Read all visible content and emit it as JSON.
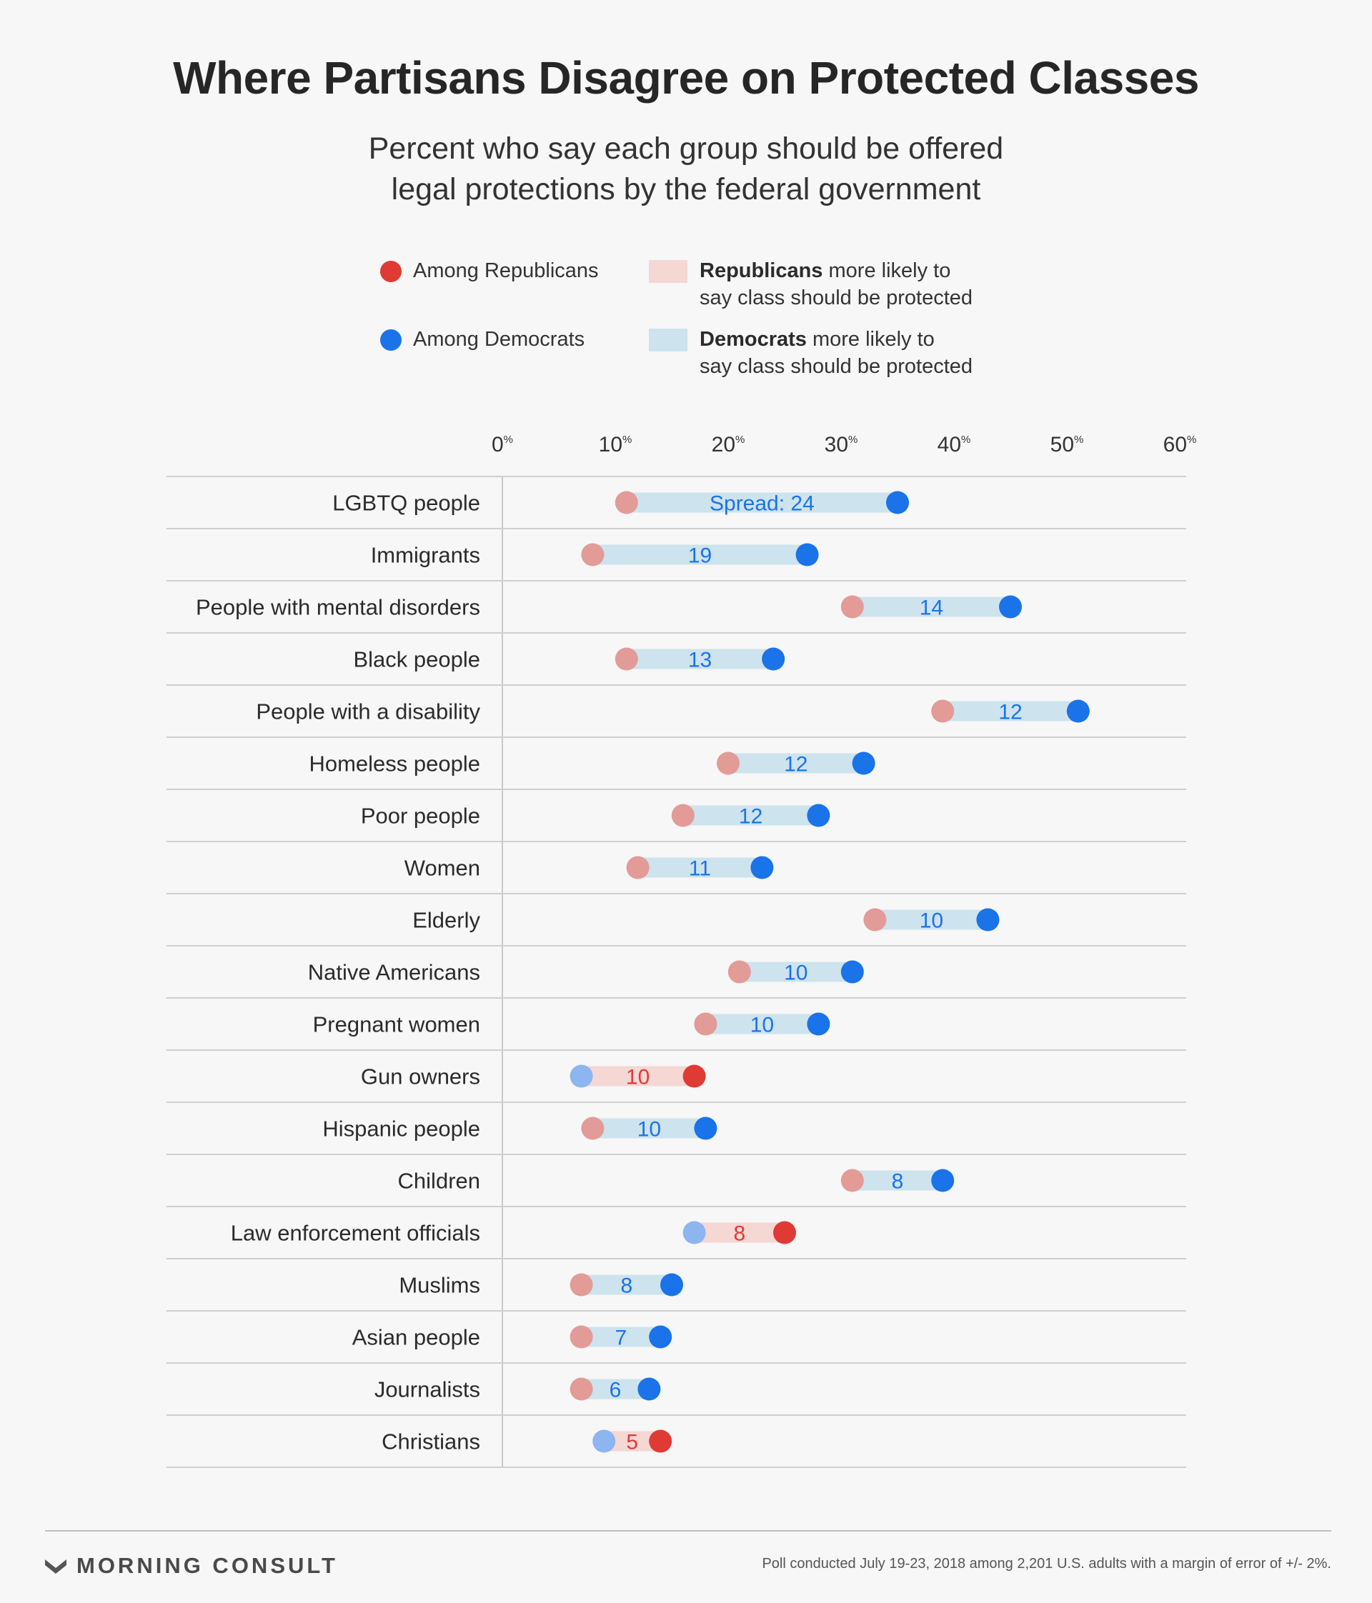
{
  "title": "Where Partisans Disagree on Protected Classes",
  "subtitle_line1": "Percent who say each group should be offered",
  "subtitle_line2": "legal protections by the federal government",
  "legend": {
    "rep_dot": "Among Republicans",
    "dem_dot": "Among Democrats",
    "rep_bar_bold": "Republicans",
    "rep_bar_rest1": " more likely to",
    "rep_bar_rest2": "say class should be protected",
    "dem_bar_bold": "Democrats",
    "dem_bar_rest1": " more likely to",
    "dem_bar_rest2": "say class should be protected"
  },
  "colors": {
    "rep": "#df3b34",
    "rep_light": "#e29b96",
    "dem": "#1a73e8",
    "dem_light": "#8db5ef",
    "dem_bar": "#cde3ee",
    "rep_bar": "#f5d7d4",
    "dem_text": "#1a73e8",
    "rep_text": "#df3b34"
  },
  "chart_data": {
    "type": "dumbbell",
    "x_ticks": [
      0,
      10,
      20,
      30,
      40,
      50,
      60
    ],
    "tick_suffix": "%",
    "xlim": [
      0,
      60
    ],
    "categories": [
      "LGBTQ people",
      "Immigrants",
      "People with mental disorders",
      "Black people",
      "People with a disability",
      "Homeless people",
      "Poor people",
      "Women",
      "Elderly",
      "Native Americans",
      "Pregnant women",
      "Gun owners",
      "Hispanic people",
      "Children",
      "Law enforcement officials",
      "Muslims",
      "Asian people",
      "Journalists",
      "Christians"
    ],
    "series": [
      {
        "name": "Among Republicans",
        "values": [
          11,
          8,
          31,
          11,
          39,
          20,
          16,
          12,
          33,
          21,
          18,
          17,
          8,
          31,
          25,
          7,
          7,
          7,
          14
        ]
      },
      {
        "name": "Among Democrats",
        "values": [
          35,
          27,
          45,
          24,
          51,
          32,
          28,
          23,
          43,
          31,
          28,
          7,
          18,
          39,
          17,
          15,
          14,
          13,
          9
        ]
      }
    ],
    "spread_labels": [
      "Spread: 24",
      "19",
      "14",
      "13",
      "12",
      "12",
      "12",
      "11",
      "10",
      "10",
      "10",
      "10",
      "10",
      "8",
      "8",
      "8",
      "7",
      "6",
      "5"
    ]
  },
  "brand": "MORNING CONSULT",
  "note": "Poll conducted July 19-23, 2018 among 2,201 U.S. adults with a margin of error of +/- 2%."
}
